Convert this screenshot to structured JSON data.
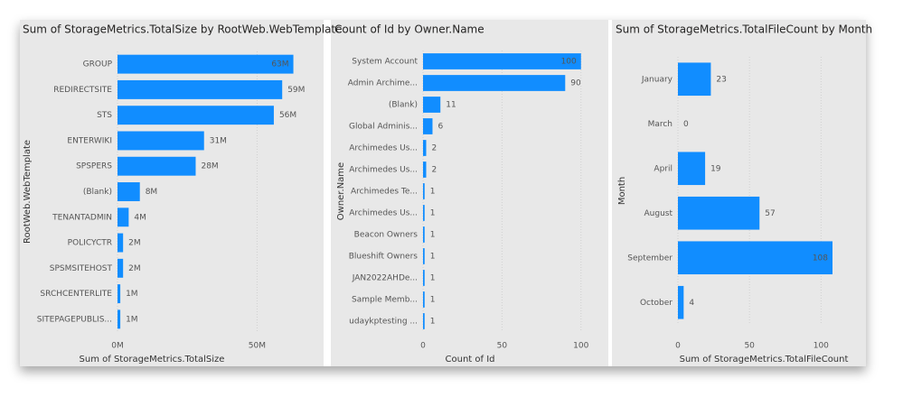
{
  "chart_data": [
    {
      "type": "bar",
      "orientation": "horizontal",
      "title": "Sum of StorageMetrics.TotalSize by RootWeb.WebTemplate",
      "x_label": "Sum of StorageMetrics.TotalSize",
      "y_label": "RootWeb.WebTemplate",
      "categories": [
        "GROUP",
        "REDIRECTSITE",
        "STS",
        "ENTERWIKI",
        "SPSPERS",
        "(Blank)",
        "TENANTADMIN",
        "POLICYCTR",
        "SPSMSITEHOST",
        "SRCHCENTERLITE",
        "SITEPAGEPUBLIS..."
      ],
      "values": [
        63000000,
        59000000,
        56000000,
        31000000,
        28000000,
        8000000,
        4000000,
        2000000,
        2000000,
        1000000,
        1000000
      ],
      "value_labels": [
        "63M",
        "59M",
        "56M",
        "31M",
        "28M",
        "8M",
        "4M",
        "2M",
        "2M",
        "1M",
        "1M"
      ],
      "color": "#118dff",
      "xlim": [
        0,
        68000000
      ],
      "xticks": [
        {
          "value": 0,
          "label": "0M"
        },
        {
          "value": 50000000,
          "label": "50M"
        }
      ],
      "grid": true
    },
    {
      "type": "bar",
      "orientation": "horizontal",
      "title": "Count of Id by Owner.Name",
      "x_label": "Count of Id",
      "y_label": "Owner.Name",
      "categories": [
        "System Account",
        "Admin Archime...",
        "(Blank)",
        "Global Adminis...",
        "Archimedes Us...",
        "Archimedes Us...",
        "Archimedes Te...",
        "Archimedes Us...",
        "Beacon Owners",
        "Blueshift Owners",
        "JAN2022AHDe...",
        "Sample Memb...",
        "udaykptesting ..."
      ],
      "values": [
        100,
        90,
        11,
        6,
        2,
        2,
        1,
        1,
        1,
        1,
        1,
        1,
        1
      ],
      "color": "#118dff",
      "xlim": [
        0,
        107
      ],
      "xticks": [
        0,
        50,
        100
      ],
      "grid": true
    },
    {
      "type": "bar",
      "orientation": "horizontal",
      "title": "Sum of StorageMetrics.TotalFileCount by Month",
      "x_label": "Sum of StorageMetrics.TotalFileCount",
      "y_label": "Month",
      "categories": [
        "January",
        "March",
        "April",
        "August",
        "September",
        "October"
      ],
      "values": [
        23,
        0,
        19,
        57,
        108,
        4
      ],
      "color": "#118dff",
      "xlim": [
        0,
        120
      ],
      "xticks": [
        0,
        50,
        100
      ],
      "grid": true
    }
  ]
}
